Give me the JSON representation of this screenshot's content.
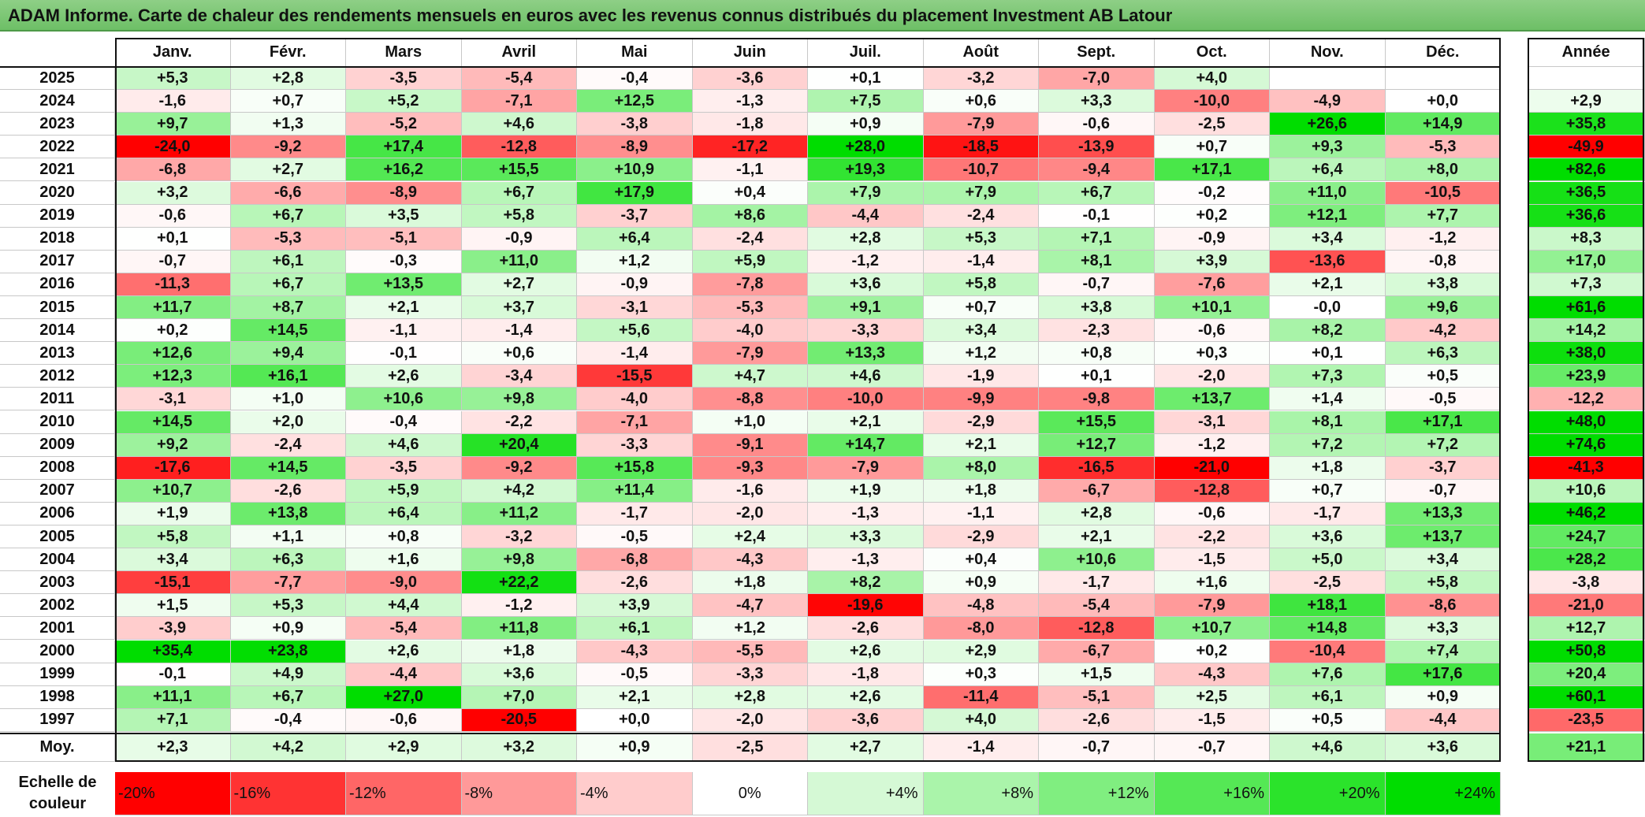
{
  "title": "ADAM Informe. Carte de chaleur des rendements mensuels en euros avec les revenus connus distribués du placement Investment AB Latour",
  "chart_data": {
    "type": "heatmap",
    "months": [
      "Janv.",
      "Févr.",
      "Mars",
      "Avril",
      "Mai",
      "Juin",
      "Juil.",
      "Août",
      "Sept.",
      "Oct.",
      "Nov.",
      "Déc."
    ],
    "annual_header": "Année",
    "rows": [
      {
        "year": "2025",
        "values": [
          "+5,3",
          "+2,8",
          "-3,5",
          "-5,4",
          "-0,4",
          "-3,6",
          "+0,1",
          "-3,2",
          "-7,0",
          "+4,0",
          "",
          ""
        ],
        "annual": ""
      },
      {
        "year": "2024",
        "values": [
          "-1,6",
          "+0,7",
          "+5,2",
          "-7,1",
          "+12,5",
          "-1,3",
          "+7,5",
          "+0,6",
          "+3,3",
          "-10,0",
          "-4,9",
          "+0,0"
        ],
        "annual": "+2,9"
      },
      {
        "year": "2023",
        "values": [
          "+9,7",
          "+1,3",
          "-5,2",
          "+4,6",
          "-3,8",
          "-1,8",
          "+0,9",
          "-7,9",
          "-0,6",
          "-2,5",
          "+26,6",
          "+14,9"
        ],
        "annual": "+35,8"
      },
      {
        "year": "2022",
        "values": [
          "-24,0",
          "-9,2",
          "+17,4",
          "-12,8",
          "-8,9",
          "-17,2",
          "+28,0",
          "-18,5",
          "-13,9",
          "+0,7",
          "+9,3",
          "-5,3"
        ],
        "annual": "-49,9"
      },
      {
        "year": "2021",
        "values": [
          "-6,8",
          "+2,7",
          "+16,2",
          "+15,5",
          "+10,9",
          "-1,1",
          "+19,3",
          "-10,7",
          "-9,4",
          "+17,1",
          "+6,4",
          "+8,0"
        ],
        "annual": "+82,6"
      },
      {
        "year": "2020",
        "values": [
          "+3,2",
          "-6,6",
          "-8,9",
          "+6,7",
          "+17,9",
          "+0,4",
          "+7,9",
          "+7,9",
          "+6,7",
          "-0,2",
          "+11,0",
          "-10,5"
        ],
        "annual": "+36,5"
      },
      {
        "year": "2019",
        "values": [
          "-0,6",
          "+6,7",
          "+3,5",
          "+5,8",
          "-3,7",
          "+8,6",
          "-4,4",
          "-2,4",
          "-0,1",
          "+0,2",
          "+12,1",
          "+7,7"
        ],
        "annual": "+36,6"
      },
      {
        "year": "2018",
        "values": [
          "+0,1",
          "-5,3",
          "-5,1",
          "-0,9",
          "+6,4",
          "-2,4",
          "+2,8",
          "+5,3",
          "+7,1",
          "-0,9",
          "+3,4",
          "-1,2"
        ],
        "annual": "+8,3"
      },
      {
        "year": "2017",
        "values": [
          "-0,7",
          "+6,1",
          "-0,3",
          "+11,0",
          "+1,2",
          "+5,9",
          "-1,2",
          "-1,4",
          "+8,1",
          "+3,9",
          "-13,6",
          "-0,8"
        ],
        "annual": "+17,0"
      },
      {
        "year": "2016",
        "values": [
          "-11,3",
          "+6,7",
          "+13,5",
          "+2,7",
          "-0,9",
          "-7,8",
          "+3,6",
          "+5,8",
          "-0,7",
          "-7,6",
          "+2,1",
          "+3,8"
        ],
        "annual": "+7,3"
      },
      {
        "year": "2015",
        "values": [
          "+11,7",
          "+8,7",
          "+2,1",
          "+3,7",
          "-3,1",
          "-5,3",
          "+9,1",
          "+0,7",
          "+3,8",
          "+10,1",
          "-0,0",
          "+9,6"
        ],
        "annual": "+61,6"
      },
      {
        "year": "2014",
        "values": [
          "+0,2",
          "+14,5",
          "-1,1",
          "-1,4",
          "+5,6",
          "-4,0",
          "-3,3",
          "+3,4",
          "-2,3",
          "-0,6",
          "+8,2",
          "-4,2"
        ],
        "annual": "+14,2"
      },
      {
        "year": "2013",
        "values": [
          "+12,6",
          "+9,4",
          "-0,1",
          "+0,6",
          "-1,4",
          "-7,9",
          "+13,3",
          "+1,2",
          "+0,8",
          "+0,3",
          "+0,1",
          "+6,3"
        ],
        "annual": "+38,0"
      },
      {
        "year": "2012",
        "values": [
          "+12,3",
          "+16,1",
          "+2,6",
          "-3,4",
          "-15,5",
          "+4,7",
          "+4,6",
          "-1,9",
          "+0,1",
          "-2,0",
          "+7,3",
          "+0,5"
        ],
        "annual": "+23,9"
      },
      {
        "year": "2011",
        "values": [
          "-3,1",
          "+1,0",
          "+10,6",
          "+9,8",
          "-4,0",
          "-8,8",
          "-10,0",
          "-9,9",
          "-9,8",
          "+13,7",
          "+1,4",
          "-0,5"
        ],
        "annual": "-12,2"
      },
      {
        "year": "2010",
        "values": [
          "+14,5",
          "+2,0",
          "-0,4",
          "-2,2",
          "-7,1",
          "+1,0",
          "+2,1",
          "-2,9",
          "+15,5",
          "-3,1",
          "+8,1",
          "+17,1"
        ],
        "annual": "+48,0"
      },
      {
        "year": "2009",
        "values": [
          "+9,2",
          "-2,4",
          "+4,6",
          "+20,4",
          "-3,3",
          "-9,1",
          "+14,7",
          "+2,1",
          "+12,7",
          "-1,2",
          "+7,2",
          "+7,2"
        ],
        "annual": "+74,6"
      },
      {
        "year": "2008",
        "values": [
          "-17,6",
          "+14,5",
          "-3,5",
          "-9,2",
          "+15,8",
          "-9,3",
          "-7,9",
          "+8,0",
          "-16,5",
          "-21,0",
          "+1,8",
          "-3,7"
        ],
        "annual": "-41,3"
      },
      {
        "year": "2007",
        "values": [
          "+10,7",
          "-2,6",
          "+5,9",
          "+4,2",
          "+11,4",
          "-1,6",
          "+1,9",
          "+1,8",
          "-6,7",
          "-12,8",
          "+0,7",
          "-0,7"
        ],
        "annual": "+10,6"
      },
      {
        "year": "2006",
        "values": [
          "+1,9",
          "+13,8",
          "+6,4",
          "+11,2",
          "-1,7",
          "-2,0",
          "-1,3",
          "-1,1",
          "+2,8",
          "-0,6",
          "-1,7",
          "+13,3"
        ],
        "annual": "+46,2"
      },
      {
        "year": "2005",
        "values": [
          "+5,8",
          "+1,1",
          "+0,8",
          "-3,2",
          "-0,5",
          "+2,4",
          "+3,3",
          "-2,9",
          "+2,1",
          "-2,2",
          "+3,6",
          "+13,7"
        ],
        "annual": "+24,7"
      },
      {
        "year": "2004",
        "values": [
          "+3,4",
          "+6,3",
          "+1,6",
          "+9,8",
          "-6,8",
          "-4,3",
          "-1,3",
          "+0,4",
          "+10,6",
          "-1,5",
          "+5,0",
          "+3,4"
        ],
        "annual": "+28,2"
      },
      {
        "year": "2003",
        "values": [
          "-15,1",
          "-7,7",
          "-9,0",
          "+22,2",
          "-2,6",
          "+1,8",
          "+8,2",
          "+0,9",
          "-1,7",
          "+1,6",
          "-2,5",
          "+5,8"
        ],
        "annual": "-3,8"
      },
      {
        "year": "2002",
        "values": [
          "+1,5",
          "+5,3",
          "+4,4",
          "-1,2",
          "+3,9",
          "-4,7",
          "-19,6",
          "-4,8",
          "-5,4",
          "-7,9",
          "+18,1",
          "-8,6"
        ],
        "annual": "-21,0"
      },
      {
        "year": "2001",
        "values": [
          "-3,9",
          "+0,9",
          "-5,4",
          "+11,8",
          "+6,1",
          "+1,2",
          "-2,6",
          "-8,0",
          "-12,8",
          "+10,7",
          "+14,8",
          "+3,3"
        ],
        "annual": "+12,7"
      },
      {
        "year": "2000",
        "values": [
          "+35,4",
          "+23,8",
          "+2,6",
          "+1,8",
          "-4,3",
          "-5,5",
          "+2,6",
          "+2,9",
          "-6,7",
          "+0,2",
          "-10,4",
          "+7,4"
        ],
        "annual": "+50,8"
      },
      {
        "year": "1999",
        "values": [
          "-0,1",
          "+4,9",
          "-4,4",
          "+3,6",
          "-0,5",
          "-3,3",
          "-1,8",
          "+0,3",
          "+1,5",
          "-4,3",
          "+7,6",
          "+17,6"
        ],
        "annual": "+20,4"
      },
      {
        "year": "1998",
        "values": [
          "+11,1",
          "+6,7",
          "+27,0",
          "+7,0",
          "+2,1",
          "+2,8",
          "+2,6",
          "-11,4",
          "-5,1",
          "+2,5",
          "+6,1",
          "+0,9"
        ],
        "annual": "+60,1"
      },
      {
        "year": "1997",
        "values": [
          "+7,1",
          "-0,4",
          "-0,6",
          "-20,5",
          "+0,0",
          "-2,0",
          "-3,6",
          "+4,0",
          "-2,6",
          "-1,5",
          "+0,5",
          "-4,4"
        ],
        "annual": "-23,5"
      }
    ],
    "average": {
      "label": "Moy.",
      "values": [
        "+2,3",
        "+4,2",
        "+2,9",
        "+3,2",
        "+0,9",
        "-2,5",
        "+2,7",
        "-1,4",
        "-0,7",
        "-0,7",
        "+4,6",
        "+3,6"
      ],
      "annual": "+21,1"
    },
    "color_scale": {
      "label": "Echelle de couleur",
      "steps": [
        "-20%",
        "-16%",
        "-12%",
        "-8%",
        "-4%",
        "0%",
        "+4%",
        "+8%",
        "+12%",
        "+16%",
        "+20%",
        "+24%"
      ],
      "negative_color": "#ff0000",
      "positive_color": "#00dd00",
      "neutral_color": "#ffffff"
    }
  }
}
